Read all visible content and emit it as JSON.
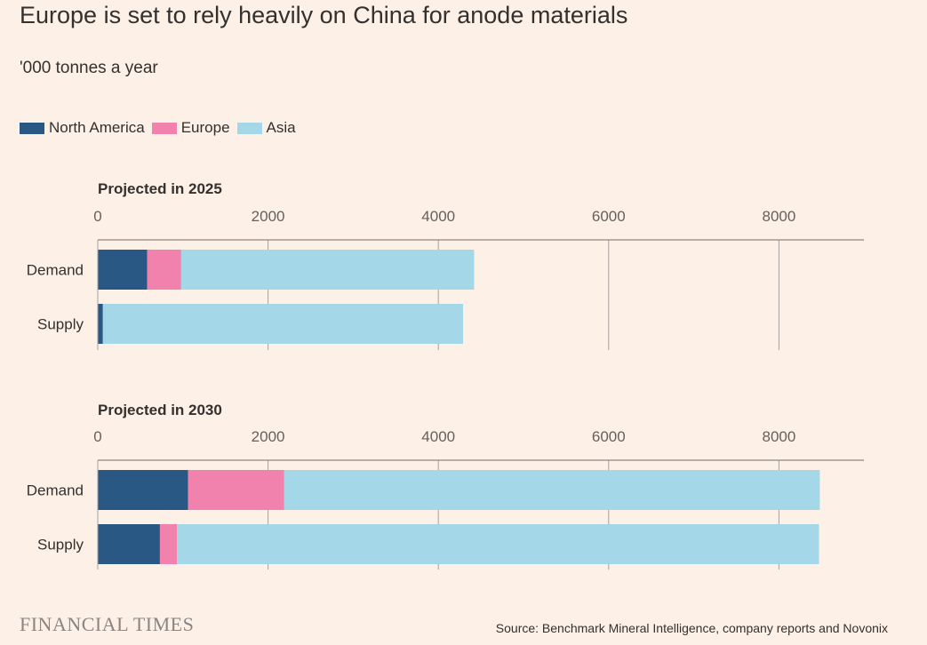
{
  "header": {
    "title": "Europe is set to rely heavily on China for anode materials",
    "subtitle": "'000 tonnes a year"
  },
  "colors": {
    "background": "#fcf0e7",
    "north_america": "#2a5885",
    "europe": "#f082ad",
    "asia": "#a4d7e8",
    "grid": "#a8a19d",
    "axis": "#8d8681"
  },
  "chart_data": [
    {
      "type": "bar",
      "orientation": "horizontal",
      "stacked": true,
      "title": "Projected in 2025",
      "categories": [
        "Demand",
        "Supply"
      ],
      "series": [
        {
          "name": "North America",
          "values": [
            580,
            60
          ]
        },
        {
          "name": "Europe",
          "values": [
            400,
            0
          ]
        },
        {
          "name": "Asia",
          "values": [
            3440,
            4230
          ]
        }
      ],
      "xlim": [
        0,
        9000
      ],
      "xticks": [
        0,
        2000,
        4000,
        6000,
        8000
      ],
      "xtick_labels": [
        "0",
        "2000",
        "4000",
        "6000",
        "8000"
      ],
      "grid": true,
      "legend": "top-left"
    },
    {
      "type": "bar",
      "orientation": "horizontal",
      "stacked": true,
      "title": "Projected in 2030",
      "categories": [
        "Demand",
        "Supply"
      ],
      "series": [
        {
          "name": "North America",
          "values": [
            1060,
            730
          ]
        },
        {
          "name": "Europe",
          "values": [
            1130,
            200
          ]
        },
        {
          "name": "Asia",
          "values": [
            6290,
            7540
          ]
        }
      ],
      "xlim": [
        0,
        9000
      ],
      "xticks": [
        0,
        2000,
        4000,
        6000,
        8000
      ],
      "xtick_labels": [
        "0",
        "2000",
        "4000",
        "6000",
        "8000"
      ],
      "grid": true,
      "legend": "top-left"
    }
  ],
  "legend": {
    "items": [
      {
        "label": "North America",
        "color": "#2a5885"
      },
      {
        "label": "Europe",
        "color": "#f082ad"
      },
      {
        "label": "Asia",
        "color": "#a4d7e8"
      }
    ]
  },
  "footer": {
    "brand": "FINANCIAL TIMES",
    "source": "Source: Benchmark Mineral Intelligence, company reports and Novonix"
  }
}
